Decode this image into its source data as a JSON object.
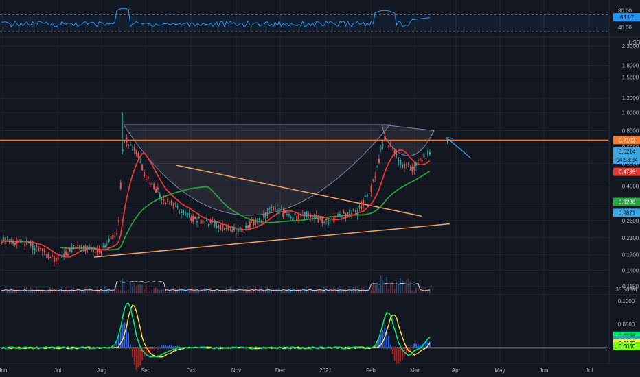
{
  "chart_data": {
    "type": "candlestick",
    "xlabels": [
      "Jun",
      "Jul",
      "Aug",
      "Sep",
      "Oct",
      "Nov",
      "Dec",
      "2021",
      "Feb",
      "Mar",
      "Apr",
      "May",
      "Jun",
      "Jul"
    ],
    "currency": "USD",
    "price_axis": {
      "ticks": [
        "2.3000",
        "1.8000",
        "1.5600",
        "1.2000",
        "1.0000",
        "0.8000",
        "0.6500",
        "0.5300",
        "0.4000",
        "0.3200",
        "0.2600",
        "0.2100",
        "0.1700",
        "0.1400",
        "0.1150"
      ],
      "scale": "log",
      "range": [
        0.105,
        2.4
      ]
    },
    "price_badges": [
      {
        "value": "0.7102",
        "color": "#f57c28",
        "text_color": "#ffffff"
      },
      {
        "value": "0.6214",
        "color": "#3da5e0",
        "text_color": "#131722"
      },
      {
        "value": "04:58:34",
        "color": "#3da5e0",
        "text_color": "#131722"
      },
      {
        "value": "0.4786",
        "color": "#e53935",
        "text_color": "#ffffff"
      },
      {
        "value": "0.3286",
        "color": "#27a641",
        "text_color": "#ffffff"
      },
      {
        "value": "0.2871",
        "color": "#3da5e0",
        "text_color": "#131722"
      }
    ],
    "volume_label": "35.565M",
    "rsi": {
      "ticks": [
        "80.00",
        "40.00"
      ],
      "badge": "63.97",
      "levels": [
        70,
        30
      ],
      "range": [
        20,
        100
      ]
    },
    "macd": {
      "ticks": [
        "0.1000",
        "0.0500"
      ],
      "badges": [
        {
          "value": "0.0258",
          "color": "#00e676",
          "text_color": "#131722"
        },
        {
          "value": "0.0163",
          "color": "#26a69a",
          "text_color": "#ffffff"
        },
        {
          "value": "0.0095",
          "color": "#ffeb3b",
          "text_color": "#131722"
        },
        {
          "value": "0.0050",
          "color": "#76ff03",
          "text_color": "#131722"
        }
      ],
      "range": [
        -0.03,
        0.11
      ]
    },
    "horizontal_level": 0.7102,
    "annotation": "cup and handle, symmetrical triangle, arrow pointing to handle"
  }
}
